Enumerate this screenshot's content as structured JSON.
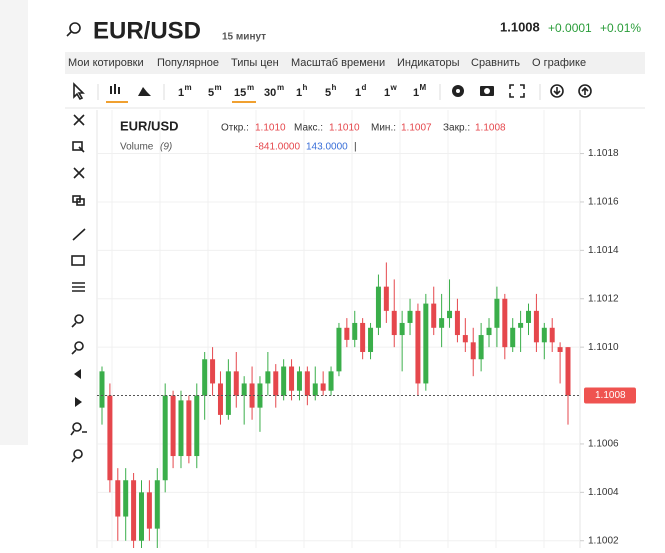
{
  "header": {
    "symbol": "EUR/USD",
    "interval": "15 минут",
    "price": "1.1008",
    "change": "+0.0001",
    "change_pct": "+0.01%"
  },
  "menu": [
    "Мои котировки",
    "Популярное",
    "Типы цен",
    "Масштаб времени",
    "Индикаторы",
    "Сравнить",
    "О графике"
  ],
  "timeframes": [
    {
      "n": "1",
      "u": "m"
    },
    {
      "n": "5",
      "u": "m"
    },
    {
      "n": "15",
      "u": "m"
    },
    {
      "n": "30",
      "u": "m"
    },
    {
      "n": "1",
      "u": "h"
    },
    {
      "n": "5",
      "u": "h"
    },
    {
      "n": "1",
      "u": "d"
    },
    {
      "n": "1",
      "u": "w"
    },
    {
      "n": "1",
      "u": "M"
    }
  ],
  "legend": {
    "symbol": "EUR/USD",
    "open_label": "Откр.:",
    "open": "1.1010",
    "high_label": "Макс.:",
    "high": "1.1010",
    "low_label": "Мин.:",
    "low": "1.1007",
    "close_label": "Закр.:",
    "close": "1.1008",
    "volume_label": "Volume",
    "volume_param": "(9)",
    "volume_a": "-841.0000",
    "volume_b": "143.0000",
    "volume_sep": "|"
  },
  "chart_data": {
    "type": "candlestick",
    "up_color": "#3aae4a",
    "down_color": "#e5474c",
    "ylim": [
      1.10017,
      1.10198
    ],
    "yticks": [
      {
        "value": 1.1002,
        "label": "1.1002"
      },
      {
        "value": 1.1004,
        "label": "1.1004"
      },
      {
        "value": 1.1006,
        "label": "1.1006"
      },
      {
        "value": 1.101,
        "label": "1.1010"
      },
      {
        "value": 1.1012,
        "label": "1.1012"
      },
      {
        "value": 1.1014,
        "label": "1.1014"
      },
      {
        "value": 1.1016,
        "label": "1.1016"
      },
      {
        "value": 1.1018,
        "label": "1.1018"
      }
    ],
    "last_price": 1.1008,
    "grid": true,
    "open": [
      1.10075,
      1.1008,
      1.10045,
      1.1003,
      1.10045,
      1.1002,
      1.1004,
      1.10025,
      1.10045,
      1.1008,
      1.10055,
      1.10078,
      1.10055,
      1.1008,
      1.10095,
      1.10085,
      1.10072,
      1.1009,
      1.1008,
      1.10085,
      1.10075,
      1.10085,
      1.1009,
      1.1008,
      1.10092,
      1.10082,
      1.1009,
      1.1008,
      1.10085,
      1.10082,
      1.1009,
      1.10108,
      1.10103,
      1.1011,
      1.10098,
      1.10108,
      1.10125,
      1.10115,
      1.10105,
      1.1011,
      1.10115,
      1.10085,
      1.10118,
      1.10108,
      1.10112,
      1.10115,
      1.10105,
      1.10102,
      1.10095,
      1.10105,
      1.10108,
      1.1012,
      1.101,
      1.10108,
      1.1011,
      1.10115,
      1.10102,
      1.10108,
      1.101,
      1.101
    ],
    "high": [
      1.10092,
      1.10085,
      1.1005,
      1.1005,
      1.10048,
      1.10045,
      1.10045,
      1.1005,
      1.10085,
      1.10082,
      1.10082,
      1.1008,
      1.10085,
      1.10098,
      1.101,
      1.1009,
      1.10095,
      1.10098,
      1.10088,
      1.10092,
      1.10088,
      1.10098,
      1.10093,
      1.10095,
      1.10095,
      1.10092,
      1.10092,
      1.10092,
      1.1009,
      1.10092,
      1.1011,
      1.10112,
      1.10115,
      1.10112,
      1.1011,
      1.1013,
      1.10135,
      1.10128,
      1.10115,
      1.1012,
      1.10118,
      1.10122,
      1.10125,
      1.10122,
      1.10128,
      1.1012,
      1.10112,
      1.10108,
      1.1011,
      1.10112,
      1.10125,
      1.10122,
      1.10112,
      1.10115,
      1.10118,
      1.10122,
      1.1011,
      1.10112,
      1.10102,
      1.101
    ],
    "low": [
      1.10068,
      1.1004,
      1.1002,
      1.1002,
      1.10015,
      1.1001,
      1.1002,
      1.10015,
      1.1004,
      1.1005,
      1.1005,
      1.10052,
      1.1005,
      1.1007,
      1.1008,
      1.10068,
      1.1007,
      1.10075,
      1.10068,
      1.1007,
      1.10065,
      1.1008,
      1.10075,
      1.10078,
      1.10078,
      1.10078,
      1.10076,
      1.10078,
      1.1008,
      1.1008,
      1.10088,
      1.101,
      1.101,
      1.10095,
      1.10095,
      1.10105,
      1.1011,
      1.101,
      1.1009,
      1.10105,
      1.1008,
      1.10082,
      1.10105,
      1.101,
      1.10108,
      1.10102,
      1.10098,
      1.10088,
      1.1009,
      1.101,
      1.101,
      1.10095,
      1.10098,
      1.10098,
      1.10105,
      1.10098,
      1.10095,
      1.10098,
      1.10085,
      1.10068
    ],
    "close": [
      1.1009,
      1.10045,
      1.1003,
      1.10045,
      1.1002,
      1.1004,
      1.10025,
      1.10045,
      1.1008,
      1.10055,
      1.10078,
      1.10055,
      1.1008,
      1.10095,
      1.10085,
      1.10072,
      1.1009,
      1.1008,
      1.10085,
      1.10075,
      1.10085,
      1.1009,
      1.1008,
      1.10092,
      1.10082,
      1.1009,
      1.1008,
      1.10085,
      1.10082,
      1.1009,
      1.10108,
      1.10103,
      1.1011,
      1.10098,
      1.10108,
      1.10125,
      1.10115,
      1.10105,
      1.1011,
      1.10115,
      1.10085,
      1.10118,
      1.10108,
      1.10112,
      1.10115,
      1.10105,
      1.10102,
      1.10095,
      1.10105,
      1.10108,
      1.1012,
      1.101,
      1.10108,
      1.1011,
      1.10115,
      1.10102,
      1.10108,
      1.10102,
      1.10098,
      1.1008
    ]
  }
}
